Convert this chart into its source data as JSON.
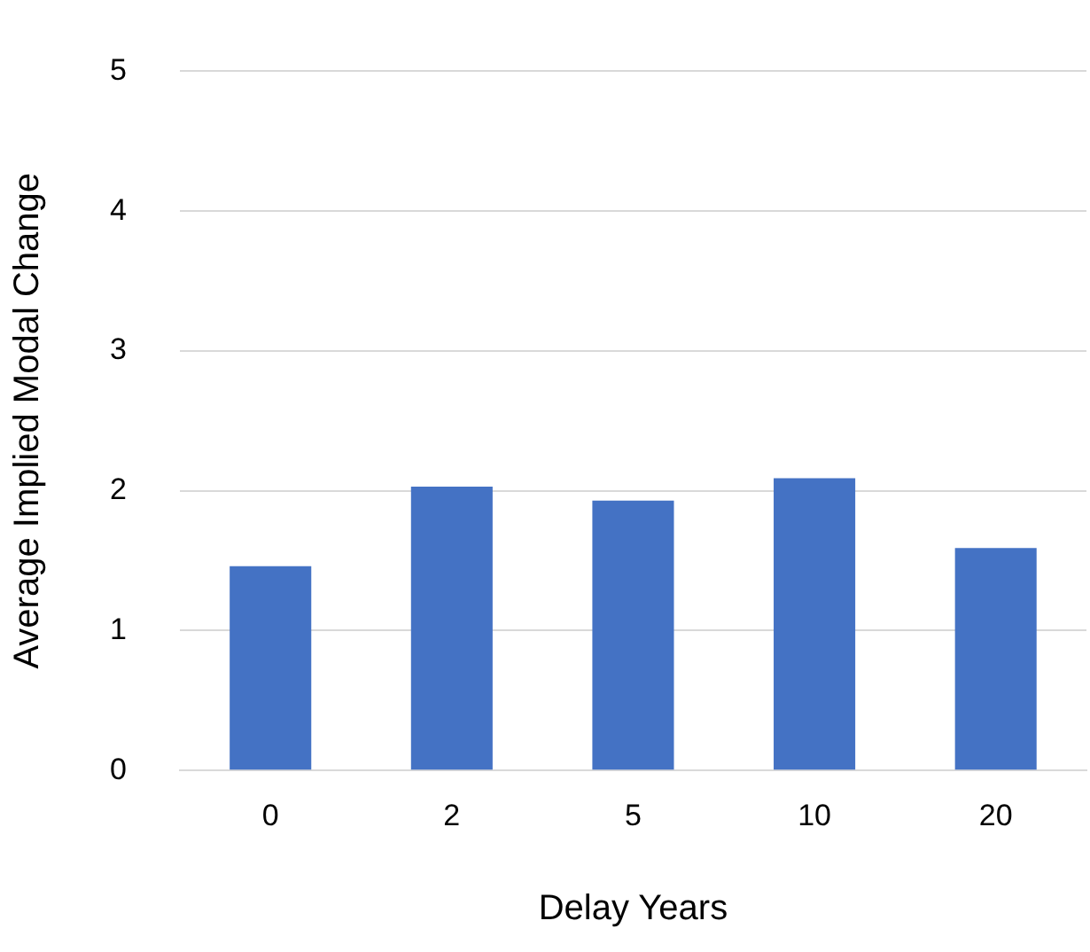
{
  "chart_data": {
    "type": "bar",
    "xlabel": "Delay Years",
    "ylabel": "Average Implied Modal Change",
    "categories": [
      "0",
      "2",
      "5",
      "10",
      "20"
    ],
    "values": [
      1.46,
      2.03,
      1.93,
      2.09,
      1.59
    ],
    "color": "#4472c4",
    "ylim": [
      0,
      5
    ],
    "yticks": [
      0,
      1,
      2,
      3,
      4,
      5
    ],
    "grid": "y",
    "legend": false
  }
}
